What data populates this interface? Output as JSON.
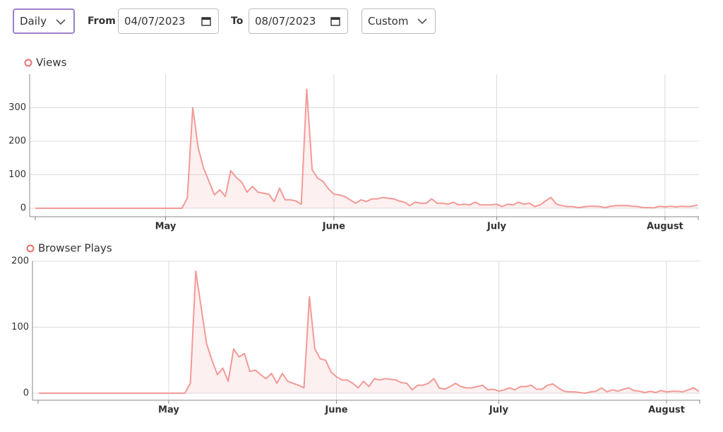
{
  "controls": {
    "period": "Daily",
    "from_label": "From",
    "from": "04/07/2023",
    "to_label": "To",
    "to": "08/07/2023",
    "range": "Custom"
  },
  "chart_data": [
    {
      "type": "area",
      "categories": [
        null,
        null,
        null,
        null,
        null,
        null,
        null,
        null,
        null,
        null,
        null,
        null,
        null,
        null,
        null,
        null,
        null,
        null,
        null,
        null,
        null,
        null,
        null,
        null,
        "May",
        null,
        null,
        null,
        null,
        null,
        null,
        null,
        null,
        null,
        null,
        null,
        null,
        null,
        null,
        null,
        null,
        null,
        null,
        null,
        null,
        null,
        null,
        null,
        null,
        null,
        null,
        null,
        null,
        null,
        null,
        "June",
        null,
        null,
        null,
        null,
        null,
        null,
        null,
        null,
        null,
        null,
        null,
        null,
        null,
        null,
        null,
        null,
        null,
        null,
        null,
        null,
        null,
        null,
        null,
        null,
        null,
        null,
        null,
        null,
        null,
        "July",
        null,
        null,
        null,
        null,
        null,
        null,
        null,
        null,
        null,
        null,
        null,
        null,
        null,
        null,
        null,
        null,
        null,
        null,
        null,
        null,
        null,
        null,
        null,
        null,
        null,
        null,
        null,
        null,
        null,
        null,
        "August",
        null,
        null,
        null,
        null,
        null,
        null
      ],
      "series": [
        {
          "name": "Views",
          "color": "#f29a97",
          "values": [
            0,
            0,
            0,
            0,
            0,
            0,
            0,
            0,
            0,
            0,
            0,
            0,
            0,
            0,
            0,
            0,
            0,
            0,
            0,
            0,
            0,
            0,
            0,
            0,
            0,
            0,
            0,
            0,
            30,
            300,
            180,
            120,
            80,
            40,
            55,
            35,
            112,
            92,
            78,
            48,
            65,
            48,
            45,
            42,
            20,
            60,
            25,
            25,
            22,
            12,
            355,
            115,
            90,
            80,
            58,
            42,
            40,
            35,
            25,
            15,
            25,
            20,
            28,
            28,
            32,
            30,
            28,
            22,
            18,
            8,
            18,
            15,
            15,
            28,
            15,
            15,
            12,
            18,
            10,
            12,
            10,
            18,
            10,
            10,
            10,
            12,
            5,
            12,
            10,
            18,
            12,
            15,
            5,
            10,
            22,
            32,
            12,
            8,
            5,
            5,
            2,
            4,
            6,
            6,
            5,
            2,
            6,
            8,
            8,
            8,
            6,
            5,
            2,
            2,
            1,
            6,
            4,
            6,
            4,
            6,
            5,
            6,
            10
          ]
        }
      ],
      "ylim": [
        0,
        400
      ],
      "yticks": [
        0,
        100,
        200,
        300
      ],
      "grid": true
    },
    {
      "type": "area",
      "categories": [
        null,
        null,
        null,
        null,
        null,
        null,
        null,
        null,
        null,
        null,
        null,
        null,
        null,
        null,
        null,
        null,
        null,
        null,
        null,
        null,
        null,
        null,
        null,
        null,
        "May",
        null,
        null,
        null,
        null,
        null,
        null,
        null,
        null,
        null,
        null,
        null,
        null,
        null,
        null,
        null,
        null,
        null,
        null,
        null,
        null,
        null,
        null,
        null,
        null,
        null,
        null,
        null,
        null,
        null,
        null,
        "June",
        null,
        null,
        null,
        null,
        null,
        null,
        null,
        null,
        null,
        null,
        null,
        null,
        null,
        null,
        null,
        null,
        null,
        null,
        null,
        null,
        null,
        null,
        null,
        null,
        null,
        null,
        null,
        null,
        null,
        "July",
        null,
        null,
        null,
        null,
        null,
        null,
        null,
        null,
        null,
        null,
        null,
        null,
        null,
        null,
        null,
        null,
        null,
        null,
        null,
        null,
        null,
        null,
        null,
        null,
        null,
        null,
        null,
        null,
        null,
        null,
        "August",
        null,
        null,
        null,
        null,
        null,
        null
      ],
      "series": [
        {
          "name": "Browser Plays",
          "color": "#f29a97",
          "values": [
            0,
            0,
            0,
            0,
            0,
            0,
            0,
            0,
            0,
            0,
            0,
            0,
            0,
            0,
            0,
            0,
            0,
            0,
            0,
            0,
            0,
            0,
            0,
            0,
            0,
            0,
            0,
            0,
            15,
            185,
            130,
            75,
            50,
            28,
            38,
            18,
            67,
            55,
            60,
            33,
            35,
            28,
            22,
            30,
            15,
            30,
            18,
            15,
            12,
            8,
            146,
            67,
            52,
            50,
            32,
            25,
            20,
            20,
            15,
            8,
            18,
            10,
            22,
            20,
            22,
            21,
            20,
            16,
            15,
            5,
            12,
            12,
            15,
            22,
            8,
            6,
            10,
            15,
            10,
            8,
            8,
            10,
            12,
            5,
            6,
            3,
            5,
            8,
            5,
            10,
            10,
            12,
            6,
            6,
            12,
            14,
            8,
            3,
            2,
            2,
            1,
            0,
            2,
            3,
            8,
            2,
            5,
            3,
            6,
            8,
            4,
            3,
            1,
            3,
            1,
            4,
            2,
            3,
            3,
            2,
            5,
            8,
            3
          ]
        }
      ],
      "ylim": [
        0,
        200
      ],
      "yticks": [
        0,
        100,
        200
      ],
      "grid": true
    }
  ]
}
